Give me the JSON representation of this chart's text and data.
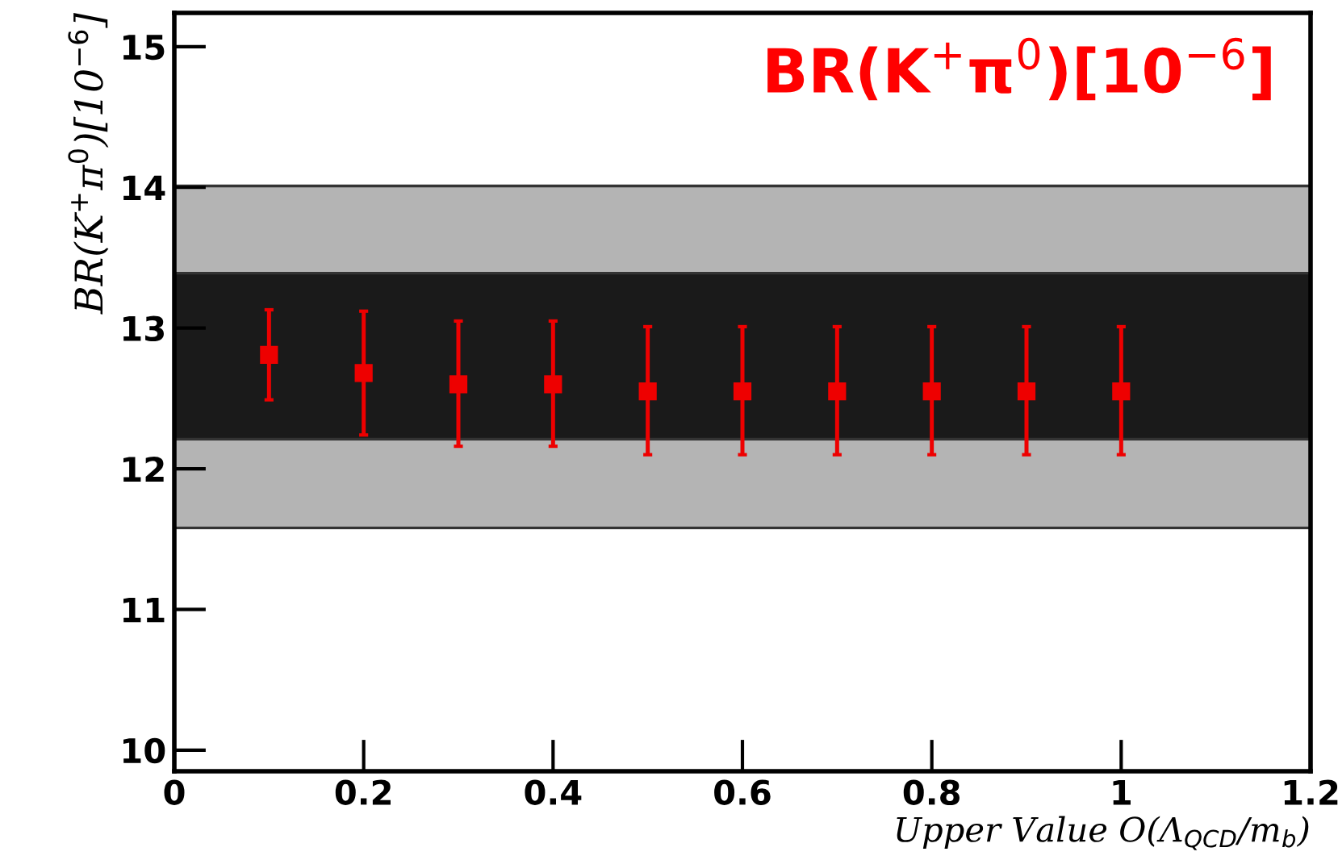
{
  "chart_data": {
    "type": "scatter",
    "xlabel": "Upper Value O(Λ$_{QCD}$/m$_{b}$)",
    "ylabel": "BR(K$^{+}$π$^{0}$)[10$^{−6}$]",
    "annotations": [
      "BR(K$^{+}$π$^{0}$)[10$^{−6}$]"
    ],
    "x": [
      0.1,
      0.2,
      0.3,
      0.4,
      0.5,
      0.6,
      0.7,
      0.8,
      0.9,
      1.0
    ],
    "series": [
      {
        "color": "#ee0000",
        "values": [
          12.81,
          12.68,
          12.6,
          12.6,
          12.55,
          12.55,
          12.55,
          12.55,
          12.55,
          12.55
        ],
        "errors": [
          [
            12.49,
            13.13
          ],
          [
            12.24,
            13.12
          ],
          [
            12.16,
            13.05
          ],
          [
            12.16,
            13.05
          ],
          [
            12.1,
            13.01
          ],
          [
            12.1,
            13.01
          ],
          [
            12.1,
            13.01
          ],
          [
            12.1,
            13.01
          ],
          [
            12.1,
            13.01
          ],
          [
            12.1,
            13.01
          ]
        ]
      }
    ],
    "bands": [
      {
        "axis": "y",
        "from": 11.58,
        "to": 14.01,
        "color": "#b4b4b4"
      },
      {
        "axis": "y",
        "from": 12.21,
        "to": 13.39,
        "color": "#1a1a1a"
      }
    ],
    "marker": "square",
    "xlim": [
      0,
      1.2
    ],
    "ylim": [
      9.85,
      15.24
    ],
    "xticks": [
      0,
      0.2,
      0.4,
      0.6,
      0.8,
      1,
      1.2
    ],
    "yticks": [
      10,
      11,
      12,
      13,
      14,
      15
    ],
    "grid": false,
    "legend": false
  }
}
